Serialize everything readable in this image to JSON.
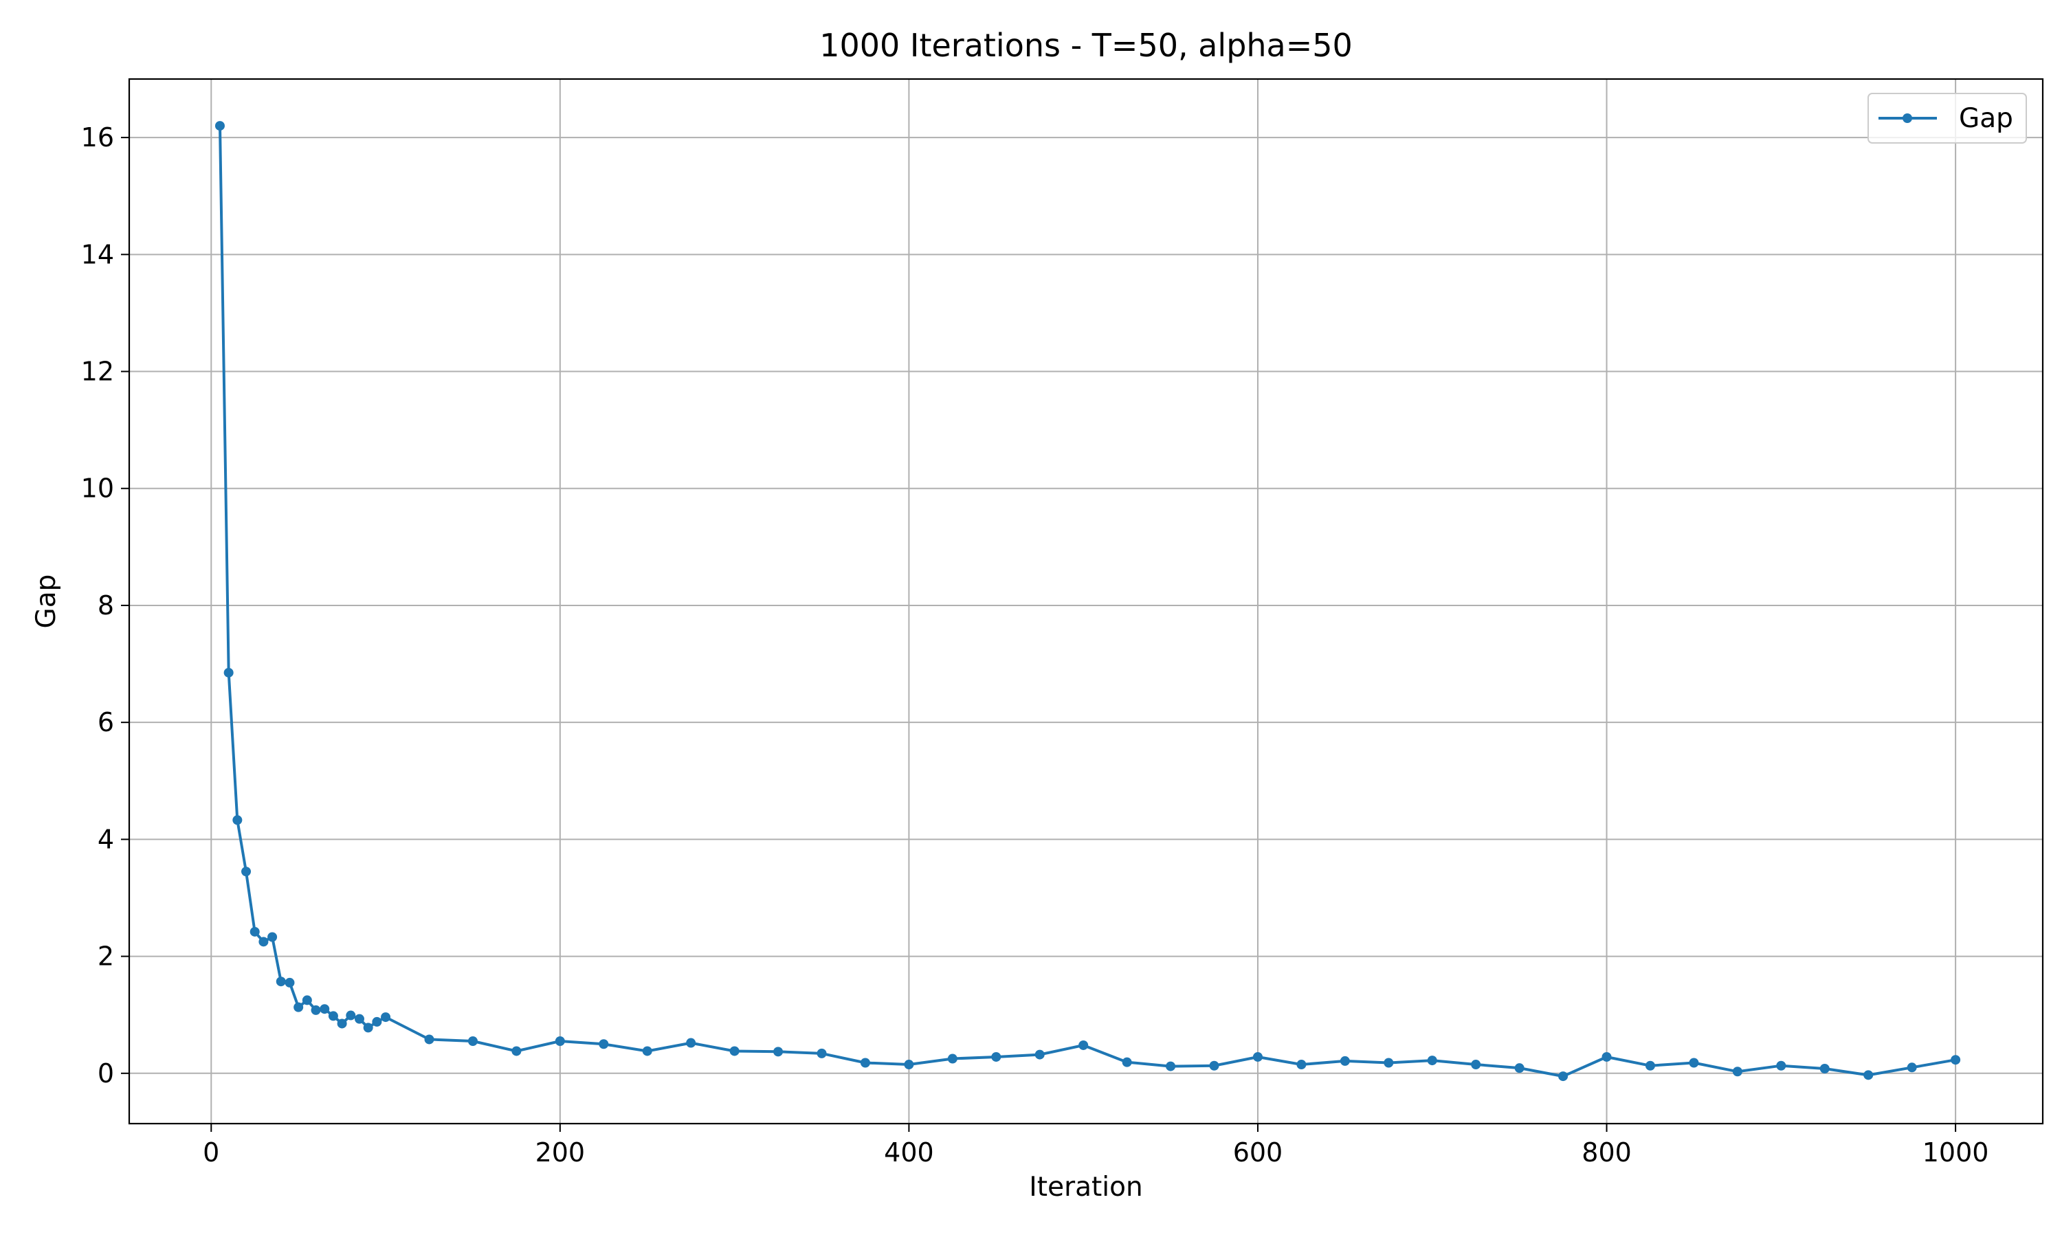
{
  "chart_data": {
    "type": "line",
    "title": "1000 Iterations - T=50, alpha=50",
    "xlabel": "Iteration",
    "ylabel": "Gap",
    "xlim": [
      -47,
      1050
    ],
    "ylim": [
      -0.86,
      17.0
    ],
    "xticks": [
      0,
      200,
      400,
      600,
      800,
      1000
    ],
    "yticks": [
      0,
      2,
      4,
      6,
      8,
      10,
      12,
      14,
      16
    ],
    "grid": true,
    "legend_position": "top-right",
    "series": [
      {
        "name": "Gap",
        "color": "#1f77b4",
        "marker": "circle",
        "x": [
          5,
          10,
          15,
          20,
          25,
          30,
          35,
          40,
          45,
          50,
          55,
          60,
          65,
          70,
          75,
          80,
          85,
          90,
          95,
          100,
          125,
          150,
          175,
          200,
          225,
          250,
          275,
          300,
          325,
          350,
          375,
          400,
          425,
          450,
          475,
          500,
          525,
          550,
          575,
          600,
          625,
          650,
          675,
          700,
          725,
          750,
          775,
          800,
          825,
          850,
          875,
          900,
          925,
          950,
          975,
          1000
        ],
        "y": [
          16.2,
          6.85,
          4.33,
          3.45,
          2.42,
          2.25,
          2.33,
          1.57,
          1.55,
          1.13,
          1.25,
          1.08,
          1.1,
          0.98,
          0.85,
          0.99,
          0.93,
          0.78,
          0.88,
          0.96,
          0.58,
          0.55,
          0.38,
          0.55,
          0.5,
          0.38,
          0.52,
          0.38,
          0.37,
          0.34,
          0.18,
          0.15,
          0.25,
          0.28,
          0.32,
          0.48,
          0.19,
          0.12,
          0.13,
          0.28,
          0.15,
          0.21,
          0.18,
          0.22,
          0.15,
          0.09,
          -0.05,
          0.28,
          0.13,
          0.18,
          0.03,
          0.13,
          0.08,
          -0.03,
          0.1,
          0.23
        ]
      }
    ]
  }
}
